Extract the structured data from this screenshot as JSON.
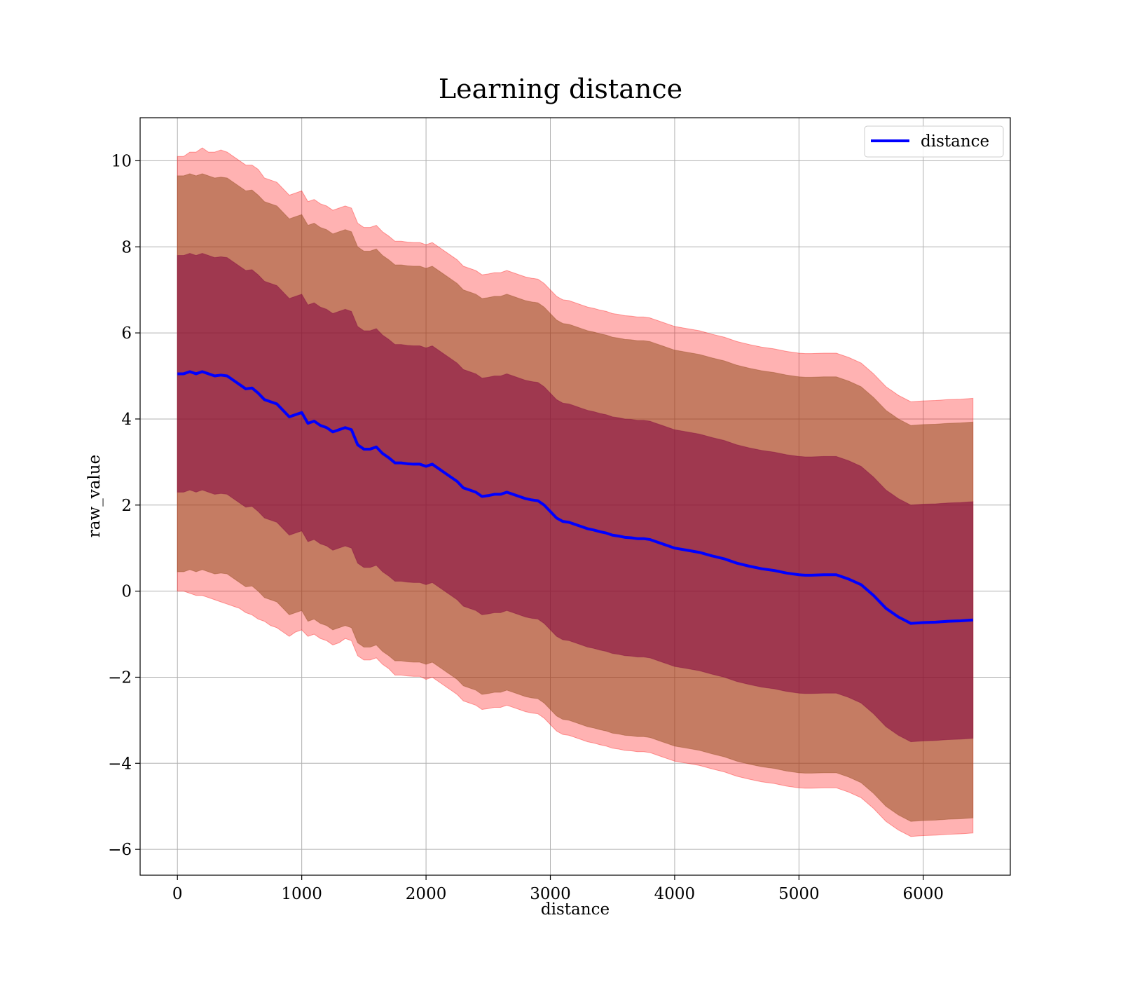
{
  "chart_data": {
    "type": "line",
    "title": "Learning distance",
    "xlabel": "distance",
    "ylabel": "raw_value",
    "xlim": [
      -300,
      6700
    ],
    "ylim": [
      -6.6,
      11
    ],
    "xticks": [
      0,
      1000,
      2000,
      3000,
      4000,
      5000,
      6000
    ],
    "yticks": [
      -6,
      -4,
      -2,
      0,
      2,
      4,
      6,
      8,
      10
    ],
    "grid": true,
    "legend": {
      "position": "top-right"
    },
    "colors": {
      "line": "#0000ff",
      "outer_band": "#ff0000",
      "middle_band": "#8b4513",
      "inner_band": "#800040"
    },
    "x": [
      0,
      50,
      100,
      150,
      200,
      250,
      300,
      350,
      400,
      450,
      500,
      550,
      600,
      650,
      700,
      750,
      800,
      850,
      900,
      950,
      1000,
      1050,
      1100,
      1150,
      1200,
      1250,
      1300,
      1350,
      1400,
      1450,
      1500,
      1550,
      1600,
      1650,
      1700,
      1750,
      1800,
      1850,
      1900,
      1950,
      2000,
      2050,
      2100,
      2150,
      2200,
      2250,
      2300,
      2350,
      2400,
      2450,
      2500,
      2550,
      2600,
      2650,
      2700,
      2750,
      2800,
      2850,
      2900,
      2950,
      3000,
      3050,
      3100,
      3150,
      3200,
      3250,
      3300,
      3350,
      3400,
      3450,
      3500,
      3550,
      3600,
      3650,
      3700,
      3750,
      3800,
      3850,
      3900,
      3950,
      4000,
      4100,
      4200,
      4300,
      4400,
      4500,
      4600,
      4700,
      4800,
      4900,
      5000,
      5050,
      5100,
      5200,
      5300,
      5400,
      5500,
      5600,
      5700,
      5800,
      5900,
      6000,
      6100,
      6200,
      6300,
      6400
    ],
    "series": [
      {
        "name": "distance",
        "values": [
          5.05,
          5.05,
          5.1,
          5.05,
          5.1,
          5.05,
          5.0,
          5.02,
          5.0,
          4.9,
          4.8,
          4.7,
          4.72,
          4.6,
          4.45,
          4.4,
          4.35,
          4.2,
          4.05,
          4.1,
          4.15,
          3.9,
          3.95,
          3.85,
          3.8,
          3.7,
          3.75,
          3.8,
          3.75,
          3.4,
          3.3,
          3.3,
          3.35,
          3.2,
          3.1,
          2.98,
          2.98,
          2.96,
          2.95,
          2.95,
          2.9,
          2.95,
          2.85,
          2.75,
          2.65,
          2.55,
          2.4,
          2.35,
          2.3,
          2.2,
          2.22,
          2.25,
          2.25,
          2.3,
          2.25,
          2.2,
          2.15,
          2.12,
          2.1,
          2.0,
          1.85,
          1.7,
          1.62,
          1.6,
          1.55,
          1.5,
          1.45,
          1.42,
          1.38,
          1.35,
          1.3,
          1.28,
          1.25,
          1.24,
          1.22,
          1.22,
          1.2,
          1.15,
          1.1,
          1.05,
          1.0,
          0.95,
          0.9,
          0.82,
          0.75,
          0.65,
          0.58,
          0.52,
          0.48,
          0.42,
          0.38,
          0.37,
          0.37,
          0.38,
          0.38,
          0.28,
          0.15,
          -0.1,
          -0.4,
          -0.6,
          -0.75,
          -0.73,
          -0.72,
          -0.7,
          -0.69,
          -0.67
        ]
      }
    ],
    "bands": [
      {
        "lower": [
          0.0,
          0.0,
          -0.05,
          -0.1,
          -0.1,
          -0.15,
          -0.2,
          -0.25,
          -0.3,
          -0.35,
          -0.4,
          -0.5,
          -0.55,
          -0.65,
          -0.7,
          -0.8,
          -0.85,
          -0.95,
          -1.05,
          -0.95,
          -0.9,
          -1.05,
          -1.0,
          -1.1,
          -1.15,
          -1.25,
          -1.2,
          -1.1,
          -1.15,
          -1.5,
          -1.6,
          -1.6,
          -1.55,
          -1.7,
          -1.8,
          -1.95,
          -1.95,
          -1.97,
          -1.98,
          -1.98,
          -2.05,
          -2.0,
          -2.1,
          -2.2,
          -2.3,
          -2.4,
          -2.55,
          -2.6,
          -2.65,
          -2.75,
          -2.73,
          -2.7,
          -2.7,
          -2.65,
          -2.7,
          -2.75,
          -2.8,
          -2.83,
          -2.85,
          -2.95,
          -3.1,
          -3.25,
          -3.33,
          -3.35,
          -3.4,
          -3.45,
          -3.5,
          -3.53,
          -3.57,
          -3.6,
          -3.65,
          -3.67,
          -3.7,
          -3.71,
          -3.73,
          -3.73,
          -3.75,
          -3.8,
          -3.85,
          -3.9,
          -3.95,
          -4.0,
          -4.05,
          -4.13,
          -4.2,
          -4.3,
          -4.37,
          -4.43,
          -4.47,
          -4.53,
          -4.57,
          -4.58,
          -4.58,
          -4.57,
          -4.57,
          -4.67,
          -4.8,
          -5.05,
          -5.35,
          -5.55,
          -5.7,
          -5.68,
          -5.67,
          -5.65,
          -5.64,
          -5.62
        ],
        "upper": [
          10.1,
          10.1,
          10.2,
          10.2,
          10.3,
          10.2,
          10.2,
          10.25,
          10.2,
          10.1,
          10.0,
          9.9,
          9.9,
          9.8,
          9.6,
          9.55,
          9.5,
          9.35,
          9.2,
          9.25,
          9.3,
          9.05,
          9.1,
          9.0,
          8.95,
          8.85,
          8.9,
          8.95,
          8.9,
          8.55,
          8.45,
          8.45,
          8.5,
          8.35,
          8.25,
          8.13,
          8.13,
          8.11,
          8.1,
          8.1,
          8.05,
          8.1,
          8.0,
          7.9,
          7.8,
          7.7,
          7.55,
          7.5,
          7.45,
          7.35,
          7.37,
          7.4,
          7.4,
          7.45,
          7.4,
          7.35,
          7.3,
          7.27,
          7.25,
          7.15,
          7.0,
          6.85,
          6.77,
          6.75,
          6.7,
          6.65,
          6.6,
          6.57,
          6.53,
          6.5,
          6.45,
          6.43,
          6.4,
          6.39,
          6.37,
          6.37,
          6.35,
          6.3,
          6.25,
          6.2,
          6.15,
          6.1,
          6.05,
          5.97,
          5.9,
          5.8,
          5.73,
          5.67,
          5.63,
          5.57,
          5.53,
          5.52,
          5.52,
          5.53,
          5.53,
          5.43,
          5.3,
          5.05,
          4.75,
          4.55,
          4.4,
          4.42,
          4.43,
          4.45,
          4.46,
          4.48
        ]
      },
      {
        "lower": [
          0.45,
          0.45,
          0.5,
          0.45,
          0.5,
          0.45,
          0.4,
          0.42,
          0.4,
          0.3,
          0.2,
          0.1,
          0.12,
          0.0,
          -0.15,
          -0.2,
          -0.25,
          -0.4,
          -0.55,
          -0.5,
          -0.45,
          -0.7,
          -0.65,
          -0.75,
          -0.8,
          -0.9,
          -0.85,
          -0.8,
          -0.85,
          -1.2,
          -1.3,
          -1.3,
          -1.25,
          -1.4,
          -1.5,
          -1.62,
          -1.62,
          -1.64,
          -1.65,
          -1.65,
          -1.7,
          -1.65,
          -1.75,
          -1.85,
          -1.95,
          -2.05,
          -2.2,
          -2.25,
          -2.3,
          -2.4,
          -2.38,
          -2.35,
          -2.35,
          -2.3,
          -2.35,
          -2.4,
          -2.45,
          -2.48,
          -2.5,
          -2.6,
          -2.75,
          -2.9,
          -2.98,
          -3.0,
          -3.05,
          -3.1,
          -3.15,
          -3.18,
          -3.22,
          -3.25,
          -3.3,
          -3.32,
          -3.35,
          -3.36,
          -3.38,
          -3.38,
          -3.4,
          -3.45,
          -3.5,
          -3.55,
          -3.6,
          -3.65,
          -3.7,
          -3.78,
          -3.85,
          -3.95,
          -4.02,
          -4.08,
          -4.12,
          -4.18,
          -4.22,
          -4.23,
          -4.23,
          -4.22,
          -4.22,
          -4.32,
          -4.45,
          -4.7,
          -5.0,
          -5.2,
          -5.35,
          -5.33,
          -5.32,
          -5.3,
          -5.29,
          -5.27
        ],
        "upper": [
          9.65,
          9.65,
          9.7,
          9.65,
          9.7,
          9.65,
          9.6,
          9.62,
          9.6,
          9.5,
          9.4,
          9.3,
          9.32,
          9.2,
          9.05,
          9.0,
          8.95,
          8.8,
          8.65,
          8.7,
          8.75,
          8.5,
          8.55,
          8.45,
          8.4,
          8.3,
          8.35,
          8.4,
          8.35,
          8.0,
          7.9,
          7.9,
          7.95,
          7.8,
          7.7,
          7.58,
          7.58,
          7.56,
          7.55,
          7.55,
          7.5,
          7.55,
          7.45,
          7.35,
          7.25,
          7.15,
          7.0,
          6.95,
          6.9,
          6.8,
          6.82,
          6.85,
          6.85,
          6.9,
          6.85,
          6.8,
          6.75,
          6.72,
          6.7,
          6.6,
          6.45,
          6.3,
          6.22,
          6.2,
          6.15,
          6.1,
          6.05,
          6.02,
          5.98,
          5.95,
          5.9,
          5.88,
          5.85,
          5.84,
          5.82,
          5.82,
          5.8,
          5.75,
          5.7,
          5.65,
          5.6,
          5.55,
          5.5,
          5.42,
          5.35,
          5.25,
          5.18,
          5.12,
          5.08,
          5.02,
          4.98,
          4.97,
          4.97,
          4.98,
          4.98,
          4.88,
          4.75,
          4.5,
          4.2,
          4.0,
          3.85,
          3.87,
          3.88,
          3.9,
          3.91,
          3.93
        ]
      },
      {
        "lower": [
          2.3,
          2.3,
          2.35,
          2.3,
          2.35,
          2.3,
          2.25,
          2.27,
          2.25,
          2.15,
          2.05,
          1.95,
          1.97,
          1.85,
          1.7,
          1.65,
          1.6,
          1.45,
          1.3,
          1.35,
          1.4,
          1.15,
          1.2,
          1.1,
          1.05,
          0.95,
          1.0,
          1.05,
          1.0,
          0.65,
          0.55,
          0.55,
          0.6,
          0.45,
          0.35,
          0.23,
          0.23,
          0.21,
          0.2,
          0.2,
          0.15,
          0.2,
          0.1,
          0.0,
          -0.1,
          -0.2,
          -0.35,
          -0.4,
          -0.45,
          -0.55,
          -0.53,
          -0.5,
          -0.5,
          -0.45,
          -0.5,
          -0.55,
          -0.6,
          -0.63,
          -0.65,
          -0.75,
          -0.9,
          -1.05,
          -1.13,
          -1.15,
          -1.2,
          -1.25,
          -1.3,
          -1.33,
          -1.37,
          -1.4,
          -1.45,
          -1.47,
          -1.5,
          -1.51,
          -1.53,
          -1.53,
          -1.55,
          -1.6,
          -1.65,
          -1.7,
          -1.75,
          -1.8,
          -1.85,
          -1.93,
          -2.0,
          -2.1,
          -2.17,
          -2.23,
          -2.27,
          -2.33,
          -2.37,
          -2.38,
          -2.38,
          -2.37,
          -2.37,
          -2.47,
          -2.6,
          -2.85,
          -3.15,
          -3.35,
          -3.5,
          -3.48,
          -3.47,
          -3.45,
          -3.44,
          -3.42
        ],
        "upper": [
          7.8,
          7.8,
          7.85,
          7.8,
          7.85,
          7.8,
          7.75,
          7.77,
          7.75,
          7.65,
          7.55,
          7.45,
          7.47,
          7.35,
          7.2,
          7.15,
          7.1,
          6.95,
          6.8,
          6.85,
          6.9,
          6.65,
          6.7,
          6.6,
          6.55,
          6.45,
          6.5,
          6.55,
          6.5,
          6.15,
          6.05,
          6.05,
          6.1,
          5.95,
          5.85,
          5.73,
          5.73,
          5.71,
          5.7,
          5.7,
          5.65,
          5.7,
          5.6,
          5.5,
          5.4,
          5.3,
          5.15,
          5.1,
          5.05,
          4.95,
          4.97,
          5.0,
          5.0,
          5.05,
          5.0,
          4.95,
          4.9,
          4.87,
          4.85,
          4.75,
          4.6,
          4.45,
          4.37,
          4.35,
          4.3,
          4.25,
          4.2,
          4.17,
          4.13,
          4.1,
          4.05,
          4.03,
          4.0,
          3.99,
          3.97,
          3.97,
          3.95,
          3.9,
          3.85,
          3.8,
          3.75,
          3.7,
          3.65,
          3.57,
          3.5,
          3.4,
          3.33,
          3.27,
          3.23,
          3.17,
          3.13,
          3.12,
          3.12,
          3.13,
          3.13,
          3.03,
          2.9,
          2.65,
          2.35,
          2.15,
          2.0,
          2.02,
          2.03,
          2.05,
          2.06,
          2.08
        ]
      }
    ]
  }
}
